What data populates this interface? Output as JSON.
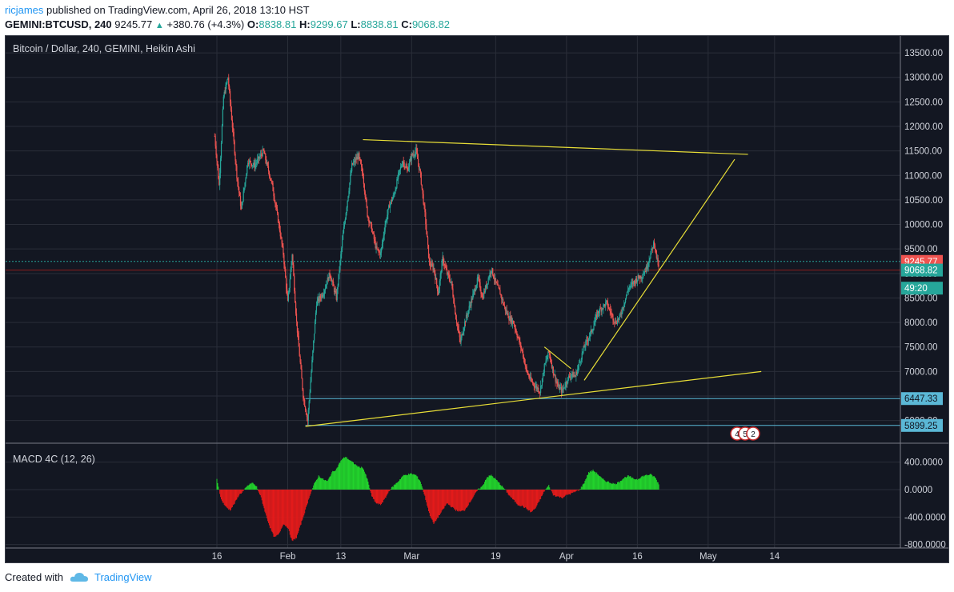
{
  "header": {
    "author": "ricjames",
    "published_text": "published on TradingView.com, April 26, 2018 13:10 HST",
    "symbol": "GEMINI:BTCUSD, 240",
    "last": "9245.77",
    "change": "+380.76 (+4.3%)",
    "o_label": "O:",
    "o": "8838.81",
    "h_label": "H:",
    "h": "9299.67",
    "l_label": "L:",
    "l": "8838.81",
    "c_label": "C:",
    "c": "9068.82"
  },
  "footer": {
    "created_with": "Created with",
    "brand": "TradingView"
  },
  "colors": {
    "background": "#131722",
    "up": "#26a69a",
    "down": "#ef5350",
    "trendline": "#e8de37",
    "support": "#5bb8d6",
    "macd_up": "#22d32c",
    "macd_down": "#e31b1b"
  },
  "chart_data": [
    {
      "type": "candlestick",
      "title": "Bitcoin / Dollar, 240, GEMINI, Heikin Ashi",
      "ylim": [
        5500,
        13800
      ],
      "y_ticks": [
        "13500.00",
        "13000.00",
        "12500.00",
        "12000.00",
        "11500.00",
        "11000.00",
        "10500.00",
        "10000.00",
        "9500.00",
        "9000.00",
        "8500.00",
        "8000.00",
        "7500.00",
        "7000.00",
        "6500.00",
        "6000.00"
      ],
      "x_ticks": [
        "16",
        "Feb",
        "13",
        "Mar",
        "19",
        "Apr",
        "16",
        "May",
        "14"
      ],
      "x_tick_days": [
        0,
        16,
        28,
        44,
        63,
        79,
        95,
        111,
        126
      ],
      "x_day_range": [
        0,
        141
      ],
      "price_path": [
        [
          -0.5,
          11800
        ],
        [
          0.5,
          10800
        ],
        [
          1.5,
          12600
        ],
        [
          2.5,
          13000
        ],
        [
          3.5,
          12000
        ],
        [
          4.5,
          11000
        ],
        [
          5.5,
          10300
        ],
        [
          7,
          11300
        ],
        [
          8.5,
          11200
        ],
        [
          10.5,
          11500
        ],
        [
          12.5,
          10800
        ],
        [
          14,
          10000
        ],
        [
          15,
          9400
        ],
        [
          16,
          8400
        ],
        [
          17,
          9400
        ],
        [
          18,
          8000
        ],
        [
          19.5,
          6500
        ],
        [
          20.5,
          6000
        ],
        [
          21.5,
          7200
        ],
        [
          22.5,
          8400
        ],
        [
          24,
          8600
        ],
        [
          25.5,
          9000
        ],
        [
          27,
          8500
        ],
        [
          28.5,
          9800
        ],
        [
          30.5,
          11200
        ],
        [
          32,
          11400
        ],
        [
          33,
          11000
        ],
        [
          34,
          10200
        ],
        [
          35,
          9900
        ],
        [
          36,
          9500
        ],
        [
          37,
          9400
        ],
        [
          38,
          10000
        ],
        [
          39,
          10400
        ],
        [
          40,
          10600
        ],
        [
          41,
          11000
        ],
        [
          42,
          11300
        ],
        [
          43,
          11100
        ],
        [
          44,
          11400
        ],
        [
          45,
          11500
        ],
        [
          46,
          11000
        ],
        [
          47,
          10200
        ],
        [
          48,
          9200
        ],
        [
          49,
          9100
        ],
        [
          50,
          8600
        ],
        [
          51,
          9300
        ],
        [
          52,
          9000
        ],
        [
          53,
          8800
        ],
        [
          54,
          8100
        ],
        [
          55,
          7600
        ],
        [
          56,
          8000
        ],
        [
          57,
          8300
        ],
        [
          58,
          8600
        ],
        [
          59,
          8900
        ],
        [
          60,
          8500
        ],
        [
          61,
          8800
        ],
        [
          62,
          9100
        ],
        [
          63,
          8800
        ],
        [
          64,
          8600
        ],
        [
          65,
          8300
        ],
        [
          66,
          8100
        ],
        [
          67,
          8000
        ],
        [
          68,
          7700
        ],
        [
          69,
          7400
        ],
        [
          70,
          7000
        ],
        [
          71,
          6800
        ],
        [
          72,
          6700
        ],
        [
          73,
          6600
        ],
        [
          74,
          7100
        ],
        [
          75,
          7400
        ],
        [
          76,
          7000
        ],
        [
          77,
          6700
        ],
        [
          78,
          6600
        ],
        [
          79,
          6800
        ],
        [
          80,
          6950
        ],
        [
          81,
          6900
        ],
        [
          82,
          7200
        ],
        [
          83,
          7500
        ],
        [
          84,
          7700
        ],
        [
          85,
          7900
        ],
        [
          86,
          8200
        ],
        [
          87,
          8300
        ],
        [
          88,
          8400
        ],
        [
          89,
          8200
        ],
        [
          90,
          8000
        ],
        [
          91,
          8100
        ],
        [
          92,
          8400
        ],
        [
          93,
          8700
        ],
        [
          94,
          8800
        ],
        [
          95,
          8900
        ],
        [
          96,
          8950
        ],
        [
          97,
          9100
        ],
        [
          98,
          9400
        ],
        [
          98.8,
          9650
        ],
        [
          99.4,
          9300
        ],
        [
          100,
          9050
        ]
      ],
      "levels": [
        {
          "label": "9245.77",
          "value": 9245.77,
          "color": "#ef5350",
          "line": "dotted-green"
        },
        {
          "label": "9068.82",
          "value": 9068.82,
          "color": "#26a69a",
          "line": "solid-red"
        },
        {
          "label": "49:20",
          "value": 8700,
          "color": "#26a69a",
          "line": "none"
        },
        {
          "label": "6447.33",
          "value": 6447.33,
          "color": "#5bb8d6",
          "line": "solid-blue"
        },
        {
          "label": "5899.25",
          "value": 5899.25,
          "color": "#5bb8d6",
          "line": "solid-blue"
        }
      ],
      "trendlines": [
        {
          "from": [
            33,
            11730
          ],
          "to": [
            120,
            11430
          ]
        },
        {
          "from": [
            20,
            5880
          ],
          "to": [
            123,
            7000
          ]
        },
        {
          "from": [
            83,
            6820
          ],
          "to": [
            117,
            11330
          ]
        },
        {
          "from": [
            74,
            7500
          ],
          "to": [
            80,
            7060
          ]
        }
      ],
      "event_markers": [
        "4",
        "5",
        "2"
      ]
    },
    {
      "type": "histogram",
      "title": "MACD 4C (12, 26)",
      "ylim": [
        -800,
        500
      ],
      "y_ticks": [
        "400.0000",
        "0.0000",
        "-400.0000",
        "-800.0000"
      ],
      "macd_path": [
        [
          0,
          150
        ],
        [
          1,
          -150
        ],
        [
          2,
          -250
        ],
        [
          3,
          -300
        ],
        [
          4,
          -200
        ],
        [
          5,
          -80
        ],
        [
          6,
          -20
        ],
        [
          7,
          60
        ],
        [
          8,
          100
        ],
        [
          9,
          40
        ],
        [
          10,
          -120
        ],
        [
          11,
          -350
        ],
        [
          12,
          -550
        ],
        [
          13,
          -700
        ],
        [
          14,
          -650
        ],
        [
          15,
          -500
        ],
        [
          16,
          -550
        ],
        [
          17,
          -750
        ],
        [
          18,
          -700
        ],
        [
          19,
          -500
        ],
        [
          20,
          -300
        ],
        [
          21,
          -80
        ],
        [
          22,
          80
        ],
        [
          23,
          200
        ],
        [
          24,
          150
        ],
        [
          25,
          120
        ],
        [
          26,
          250
        ],
        [
          27,
          300
        ],
        [
          28,
          420
        ],
        [
          29,
          480
        ],
        [
          30,
          430
        ],
        [
          31,
          380
        ],
        [
          32,
          330
        ],
        [
          33,
          320
        ],
        [
          34,
          150
        ],
        [
          35,
          -100
        ],
        [
          36,
          -200
        ],
        [
          37,
          -220
        ],
        [
          38,
          -130
        ],
        [
          39,
          -10
        ],
        [
          40,
          60
        ],
        [
          41,
          120
        ],
        [
          42,
          200
        ],
        [
          43,
          220
        ],
        [
          44,
          230
        ],
        [
          45,
          210
        ],
        [
          46,
          120
        ],
        [
          47,
          -100
        ],
        [
          48,
          -350
        ],
        [
          49,
          -500
        ],
        [
          50,
          -400
        ],
        [
          51,
          -300
        ],
        [
          52,
          -200
        ],
        [
          53,
          -250
        ],
        [
          54,
          -300
        ],
        [
          55,
          -320
        ],
        [
          56,
          -300
        ],
        [
          57,
          -200
        ],
        [
          58,
          -100
        ],
        [
          59,
          0
        ],
        [
          60,
          50
        ],
        [
          61,
          180
        ],
        [
          62,
          210
        ],
        [
          63,
          150
        ],
        [
          64,
          80
        ],
        [
          65,
          10
        ],
        [
          66,
          -80
        ],
        [
          67,
          -150
        ],
        [
          68,
          -220
        ],
        [
          69,
          -240
        ],
        [
          70,
          -280
        ],
        [
          71,
          -330
        ],
        [
          72,
          -270
        ],
        [
          73,
          -150
        ],
        [
          74,
          -20
        ],
        [
          75,
          60
        ],
        [
          76,
          -80
        ],
        [
          77,
          -100
        ],
        [
          78,
          -120
        ],
        [
          79,
          -80
        ],
        [
          80,
          -60
        ],
        [
          81,
          -30
        ],
        [
          82,
          0
        ],
        [
          83,
          100
        ],
        [
          84,
          250
        ],
        [
          85,
          280
        ],
        [
          86,
          230
        ],
        [
          87,
          160
        ],
        [
          88,
          120
        ],
        [
          89,
          100
        ],
        [
          90,
          80
        ],
        [
          91,
          120
        ],
        [
          92,
          170
        ],
        [
          93,
          200
        ],
        [
          94,
          160
        ],
        [
          95,
          150
        ],
        [
          96,
          190
        ],
        [
          97,
          210
        ],
        [
          98,
          220
        ],
        [
          99,
          180
        ],
        [
          100,
          60
        ]
      ]
    }
  ]
}
